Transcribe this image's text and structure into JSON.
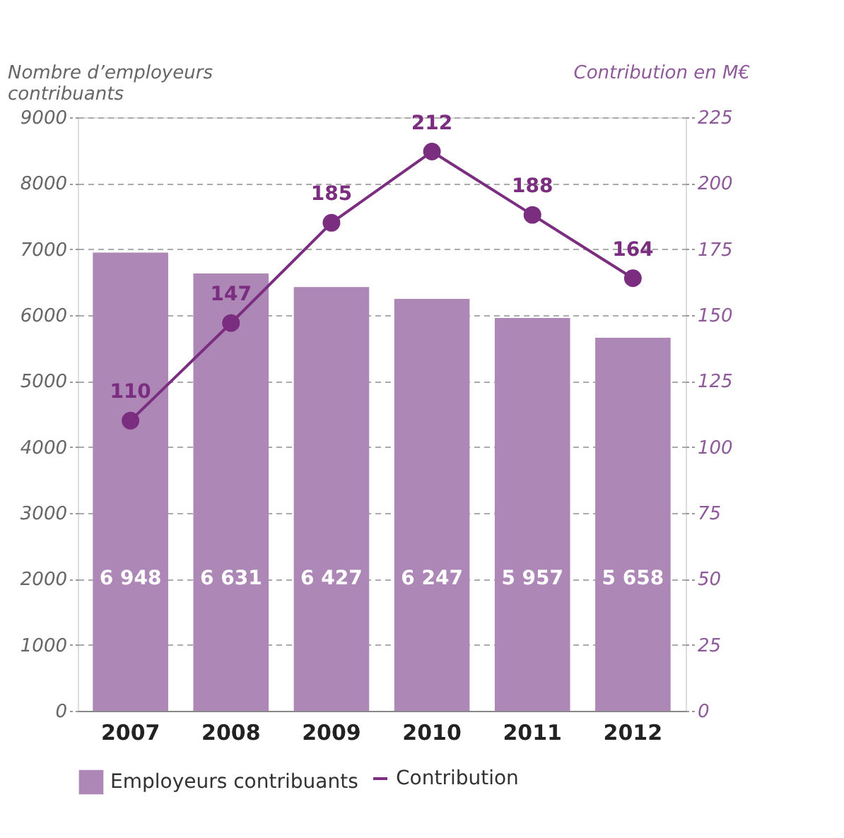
{
  "chart_data": {
    "type": "bar",
    "ylabel": "Nombre d’employeurs contribuants",
    "y2label": "Contribution en M€",
    "categories": [
      "2007",
      "2008",
      "2009",
      "2010",
      "2011",
      "2012"
    ],
    "series": [
      {
        "name": "Employeurs contribuants",
        "color": "#ad87b5",
        "values": [
          6948,
          6631,
          6427,
          6247,
          5957,
          5658
        ],
        "value_labels": [
          "6 948",
          "6 631",
          "6 427",
          "6 247",
          "5 957",
          "5 658"
        ]
      },
      {
        "name": "Contribution",
        "type": "line",
        "axis": "y2",
        "color": "#7b2d7f",
        "marker": "circle",
        "values": [
          110,
          147,
          185,
          212,
          188,
          164
        ],
        "value_labels": [
          "110",
          "147",
          "185",
          "212",
          "188",
          "164"
        ]
      }
    ],
    "ylim": [
      0,
      9000
    ],
    "yticks": [
      0,
      1000,
      2000,
      3000,
      4000,
      5000,
      6000,
      7000,
      8000,
      9000
    ],
    "y2lim": [
      0,
      225
    ],
    "y2ticks": [
      0,
      25,
      50,
      75,
      100,
      125,
      150,
      175,
      200,
      225
    ],
    "grid": "y",
    "legend": "bottom"
  }
}
